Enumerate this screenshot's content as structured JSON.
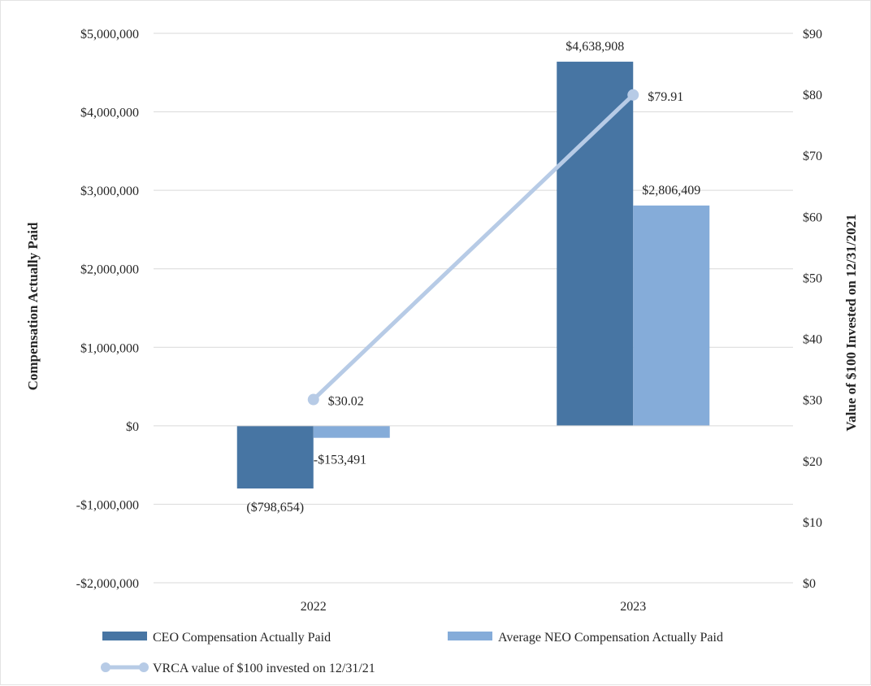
{
  "chart_data": {
    "type": "bar",
    "categories": [
      "2022",
      "2023"
    ],
    "series": [
      {
        "name": "CEO Compensation Actually Paid",
        "axis": "left",
        "values": [
          -798654,
          4638908
        ],
        "labels": [
          "($798,654)",
          "$4,638,908"
        ],
        "color": "#4775a3"
      },
      {
        "name": "Average NEO Compensation Actually Paid",
        "axis": "left",
        "values": [
          -153491,
          2806409
        ],
        "labels": [
          "-$153,491",
          "$2,806,409"
        ],
        "color": "#85acd9"
      },
      {
        "name": "VRCA value of $100 invested on 12/31/21",
        "type": "line",
        "axis": "right",
        "values": [
          30.02,
          79.91
        ],
        "labels": [
          "$30.02",
          "$79.91"
        ],
        "color": "#b7cbe6"
      }
    ],
    "ylabel": "Compensation Actually Paid",
    "y2label": "Value of $100 Invested on 12/31/2021",
    "ylim": [
      -2000000,
      5000000
    ],
    "y2lim": [
      0,
      90
    ],
    "yticks": [
      5000000,
      4000000,
      3000000,
      2000000,
      1000000,
      0,
      -1000000,
      -2000000
    ],
    "yticklabels": [
      "$5,000,000",
      "$4,000,000",
      "$3,000,000",
      "$2,000,000",
      "$1,000,000",
      "$0",
      "-$1,000,000",
      "-$2,000,000"
    ],
    "y2ticks": [
      90,
      80,
      70,
      60,
      50,
      40,
      30,
      20,
      10,
      0
    ],
    "y2ticklabels": [
      "$90",
      "$80",
      "$70",
      "$60",
      "$50",
      "$40",
      "$30",
      "$20",
      "$10",
      "$0"
    ],
    "grid": true,
    "legend_position": "bottom"
  }
}
